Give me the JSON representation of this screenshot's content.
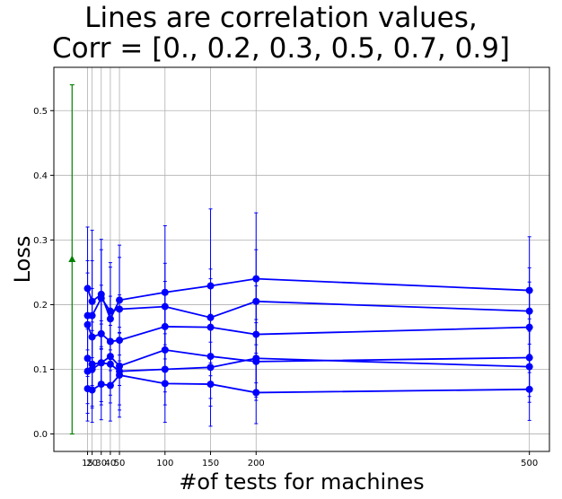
{
  "chart_data": {
    "type": "line",
    "title": [
      "Lines are correlation values,",
      "Corr = [0., 0.2, 0.3, 0.5, 0.7, 0.9]"
    ],
    "xlabel": "#of tests for machines",
    "ylabel": "Loss",
    "x": [
      15,
      20,
      30,
      40,
      50,
      100,
      150,
      200,
      500
    ],
    "xticks": [
      15,
      20,
      30,
      40,
      50,
      100,
      150,
      200,
      500
    ],
    "xlim": [
      -22,
      522
    ],
    "ylim": [
      -0.027,
      0.567
    ],
    "yticks": [
      0.0,
      0.1,
      0.2,
      0.3,
      0.4,
      0.5
    ],
    "ytick_labels": [
      "0.0",
      "0.1",
      "0.2",
      "0.3",
      "0.4",
      "0.5"
    ],
    "grid": true,
    "series": [
      {
        "color": "#0000ff",
        "values": [
          0.225,
          0.205,
          0.216,
          0.178,
          0.207,
          0.219,
          0.229,
          0.24,
          0.222
        ],
        "err": [
          0.095,
          0.11,
          0.085,
          0.08,
          0.085,
          0.103,
          0.119,
          0.102,
          0.083
        ]
      },
      {
        "color": "#0000ff",
        "values": [
          0.183,
          0.183,
          0.21,
          0.19,
          0.193,
          0.197,
          0.18,
          0.205,
          0.19
        ],
        "err": [
          0.085,
          0.085,
          0.075,
          0.075,
          0.08,
          0.067,
          0.075,
          0.08,
          0.067
        ]
      },
      {
        "color": "#0000ff",
        "values": [
          0.169,
          0.15,
          0.155,
          0.143,
          0.145,
          0.166,
          0.165,
          0.154,
          0.165
        ],
        "err": [
          0.08,
          0.075,
          0.075,
          0.07,
          0.07,
          0.07,
          0.075,
          0.075,
          0.07
        ]
      },
      {
        "color": "#0000ff",
        "values": [
          0.117,
          0.108,
          0.11,
          0.12,
          0.105,
          0.13,
          0.12,
          0.112,
          0.118
        ],
        "err": [
          0.07,
          0.065,
          0.065,
          0.06,
          0.06,
          0.065,
          0.065,
          0.06,
          0.06
        ]
      },
      {
        "color": "#0000ff",
        "values": [
          0.097,
          0.1,
          0.11,
          0.108,
          0.097,
          0.1,
          0.103,
          0.117,
          0.104
        ],
        "err": [
          0.065,
          0.06,
          0.06,
          0.06,
          0.06,
          0.055,
          0.06,
          0.06,
          0.055
        ]
      },
      {
        "color": "#0000ff",
        "values": [
          0.07,
          0.068,
          0.077,
          0.075,
          0.091,
          0.078,
          0.077,
          0.064,
          0.069
        ],
        "err": [
          0.05,
          0.05,
          0.055,
          0.055,
          0.065,
          0.06,
          0.065,
          0.048,
          0.048
        ]
      }
    ],
    "reference_point": {
      "color": "#008000",
      "x": -2,
      "y": 0.27,
      "ylow": 0.0,
      "yhigh": 0.54
    }
  }
}
